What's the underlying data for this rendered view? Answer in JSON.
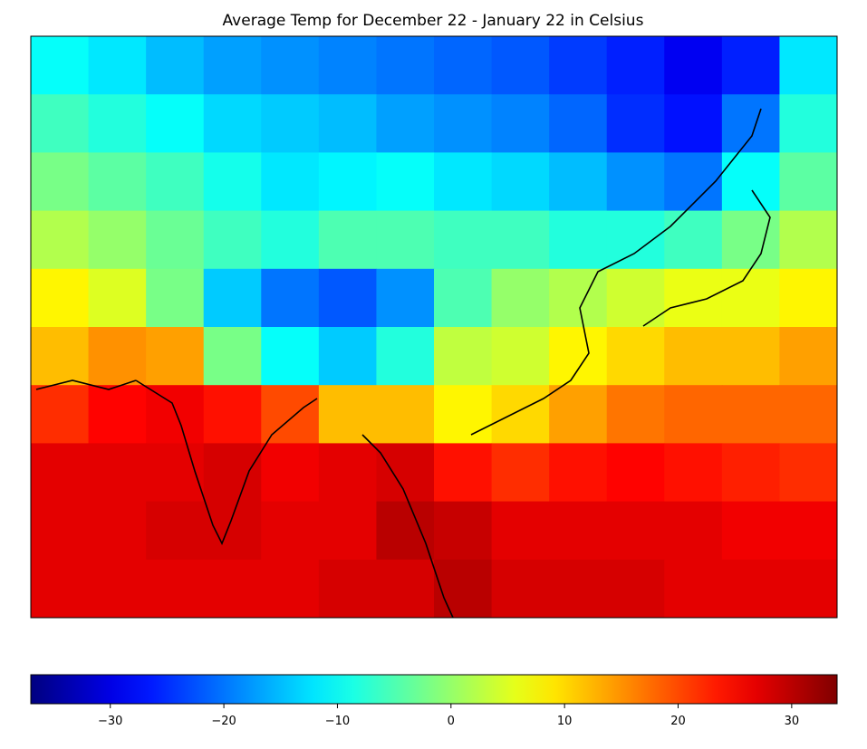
{
  "chart_data": {
    "type": "heatmap",
    "title": "Average Temp for December 22 - January 22 in Celsius",
    "colormap": "jet",
    "clim": [
      -37,
      34
    ],
    "values": [
      [
        -10,
        -12,
        -15,
        -17,
        -18,
        -19,
        -20,
        -21,
        -22,
        -24,
        -26,
        -29,
        -26,
        -12
      ],
      [
        -6,
        -8,
        -10,
        -13,
        -14,
        -15,
        -17,
        -18,
        -19,
        -21,
        -25,
        -27,
        -20,
        -8
      ],
      [
        -2,
        -4,
        -6,
        -9,
        -12,
        -11,
        -10,
        -12,
        -13,
        -15,
        -18,
        -20,
        -10,
        -4
      ],
      [
        2,
        0,
        -3,
        -6,
        -8,
        -5,
        -5,
        -6,
        -6,
        -8,
        -8,
        -6,
        -2,
        2
      ],
      [
        8,
        5,
        -2,
        -14,
        -20,
        -22,
        -18,
        -5,
        0,
        2,
        4,
        6,
        6,
        8
      ],
      [
        12,
        15,
        14,
        -2,
        -10,
        -14,
        -8,
        3,
        4,
        8,
        10,
        12,
        12,
        14
      ],
      [
        22,
        25,
        26,
        24,
        20,
        12,
        12,
        8,
        10,
        14,
        17,
        18,
        18,
        18
      ],
      [
        27,
        27,
        27,
        28,
        26,
        27,
        28,
        24,
        22,
        24,
        25,
        24,
        23,
        22
      ],
      [
        27,
        27,
        28,
        28,
        27,
        27,
        30,
        29,
        27,
        27,
        27,
        27,
        26,
        26
      ],
      [
        27,
        27,
        27,
        27,
        27,
        28,
        28,
        30,
        28,
        28,
        28,
        27,
        27,
        27
      ]
    ],
    "colorbar_ticks": [
      {
        "value": -30,
        "label": "−30"
      },
      {
        "value": -20,
        "label": "−20"
      },
      {
        "value": -10,
        "label": "−10"
      },
      0,
      10,
      20,
      30
    ]
  }
}
